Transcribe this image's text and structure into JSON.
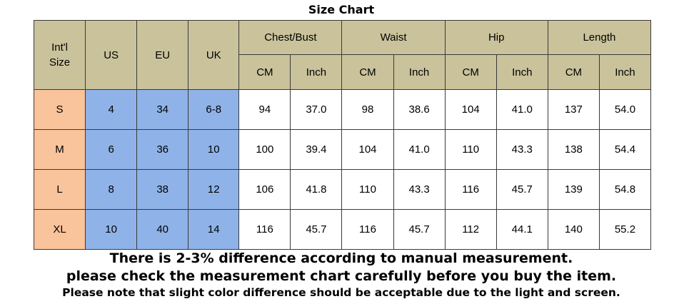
{
  "title": "Size Chart",
  "headers": {
    "intl_line1": "Int'l",
    "intl_line2": "Size",
    "us": "US",
    "eu": "EU",
    "uk": "UK",
    "groups": [
      "Chest/Bust",
      "Waist",
      "Hip",
      "Length"
    ],
    "units": [
      "CM",
      "Inch",
      "CM",
      "Inch",
      "CM",
      "Inch",
      "CM",
      "Inch"
    ]
  },
  "rows": [
    {
      "intl": "S",
      "us": "4",
      "eu": "34",
      "uk": "6-8",
      "values": [
        "94",
        "37.0",
        "98",
        "38.6",
        "104",
        "41.0",
        "137",
        "54.0"
      ]
    },
    {
      "intl": "M",
      "us": "6",
      "eu": "36",
      "uk": "10",
      "values": [
        "100",
        "39.4",
        "104",
        "41.0",
        "110",
        "43.3",
        "138",
        "54.4"
      ]
    },
    {
      "intl": "L",
      "us": "8",
      "eu": "38",
      "uk": "12",
      "values": [
        "106",
        "41.8",
        "110",
        "43.3",
        "116",
        "45.7",
        "139",
        "54.8"
      ]
    },
    {
      "intl": "XL",
      "us": "10",
      "eu": "40",
      "uk": "14",
      "values": [
        "116",
        "45.7",
        "116",
        "45.7",
        "112",
        "44.1",
        "140",
        "55.2"
      ]
    }
  ],
  "notes": [
    "There is 2-3% difference according to manual measurement.",
    "please check the measurement chart carefully before you buy the item.",
    "Please note that slight color difference should be acceptable due to the light and screen."
  ],
  "colors": {
    "header_bg": "#c9c29b",
    "intl_col_bg": "#f9c39b",
    "region_cols_bg": "#8fb3e8",
    "border": "#3a3a3a"
  }
}
